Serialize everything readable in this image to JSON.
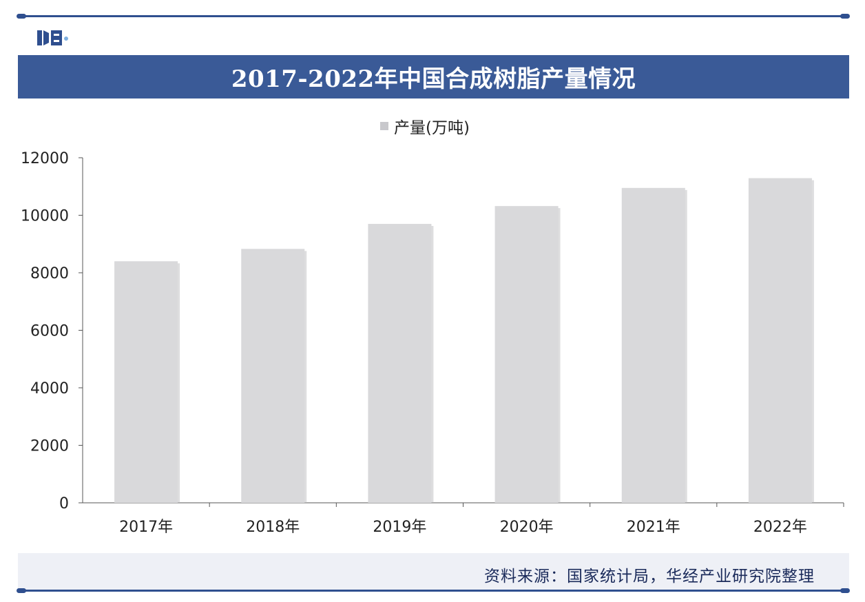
{
  "colors": {
    "brand": "#3a5a97",
    "bar": "#d9d9db",
    "axis": "#555555",
    "source_bg": "#eef0f6"
  },
  "legend": {
    "label": "产量(万吨)"
  },
  "source": {
    "text": "资料来源：国家统计局，华经产业研究院整理"
  },
  "logo": {
    "icon": "company-logo"
  },
  "chart_data": {
    "type": "bar",
    "title": "2017-2022年中国合成树脂产量情况",
    "categories": [
      "2017年",
      "2018年",
      "2019年",
      "2020年",
      "2021年",
      "2022年"
    ],
    "series": [
      {
        "name": "产量(万吨)",
        "values": [
          8400,
          8830,
          9700,
          10320,
          10950,
          11290
        ]
      }
    ],
    "ylim": [
      0,
      12000
    ],
    "yticks": [
      0,
      2000,
      4000,
      6000,
      8000,
      10000,
      12000
    ],
    "ytick_labels": [
      "0",
      "2000",
      "4000",
      "6000",
      "8000",
      "10000",
      "12000"
    ],
    "xlabel": "",
    "ylabel": "",
    "grid": false,
    "legend_position": "top-center"
  }
}
